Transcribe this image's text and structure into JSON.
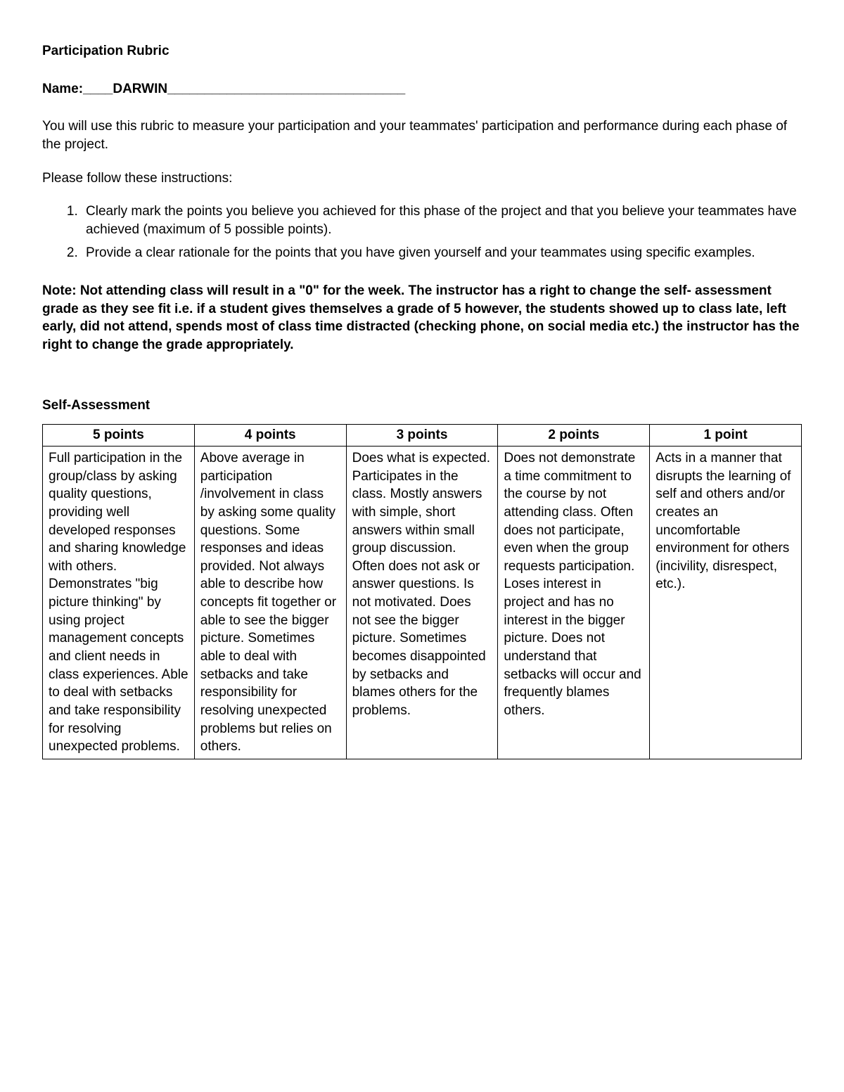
{
  "title": "Participation Rubric",
  "name_label": "Name:____DARWIN________________________________",
  "intro": "You will use this rubric to measure your participation and your teammates' participation and performance during each phase of the project.",
  "instructions_lead": "Please follow these instructions:",
  "instructions": [
    "Clearly mark the points you believe you achieved for this phase of the project and that you believe your teammates have achieved (maximum of 5 possible points).",
    "Provide a clear rationale for the points that you have given yourself and your teammates using specific examples."
  ],
  "note": "Note:  Not attending class will result in a \"0\" for the week.  The instructor has a right to change the self- assessment grade as they see fit i.e. if a student gives themselves a grade of 5 however, the students showed up to class late, left early, did not attend, spends most of class time distracted (checking phone, on social media etc.) the instructor has the right to change the grade appropriately.",
  "section_header": "Self-Assessment",
  "rubric": {
    "columns": [
      "5 points",
      "4 points",
      "3 points",
      "2 points",
      "1 point"
    ],
    "cells": [
      "Full participation in the group/class by asking quality questions, providing well developed responses and sharing knowledge with others. Demonstrates \"big picture thinking\" by using project management concepts and client needs in class experiences. Able to deal with setbacks and take responsibility for resolving unexpected problems.",
      "Above average in participation /involvement in class by asking some quality questions. Some responses and ideas provided. Not always able to describe how concepts fit together or able to see the bigger picture. Sometimes able to deal with setbacks and take responsibility for resolving unexpected problems but relies on others.",
      "Does what is expected. Participates in the class.  Mostly answers with simple, short answers within small group discussion.  Often does not ask or answer questions. Is not motivated. Does not see the bigger picture. Sometimes becomes disappointed by setbacks and blames others for the problems.",
      "Does not demonstrate a time commitment to the course by not attending class.  Often does not participate, even when the group requests participation. Loses interest in project and has no interest in the bigger picture. Does not understand that setbacks will occur and frequently blames others.",
      "Acts in a manner that disrupts the learning of self and others and/or creates an uncomfortable environment for others (incivility, disrespect, etc.)."
    ],
    "border_color": "#000000",
    "background_color": "#ffffff",
    "header_fontweight": "bold",
    "cell_fontsize": 19
  }
}
